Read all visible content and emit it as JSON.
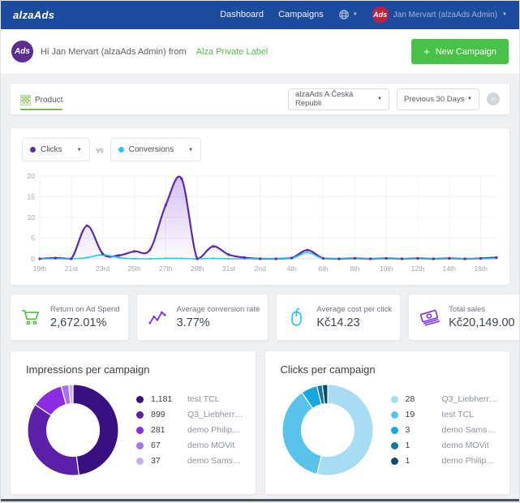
{
  "navbar": {
    "brand": "alzaAds",
    "items": [
      {
        "label": "Dashboard"
      },
      {
        "label": "Campaigns"
      }
    ],
    "user_badge": "Ads",
    "user_badge_color": "#c41f3e",
    "user": "Jan Mervart (alzaAds Admin)"
  },
  "greeting": {
    "badge": "Ads",
    "badge_color": "#5c2d91",
    "text": "Hi Jan Mervart (alzaAds Admin) from",
    "link": "Alza Private Label",
    "plus": "+",
    "new_campaign": "New Campaign",
    "button_color": "#47c147"
  },
  "filterbar": {
    "tab": "Product",
    "account_select": "alzaAds A Česká Republi",
    "range_select": "Previous 30 Days"
  },
  "series_controls": {
    "left_label": "Clicks",
    "left_color": "#5a2da5",
    "vs": "vs",
    "right_label": "Conversions",
    "right_color": "#29c5f6"
  },
  "ui": {
    "caret": "▼",
    "close": "✕"
  },
  "stats": [
    {
      "label": "Return on Ad Spend",
      "value": "2,672.01%",
      "icon": "cart-icon",
      "color": "#4bc142"
    },
    {
      "label": "Average conversion rate",
      "value": "3.77%",
      "icon": "trend-icon",
      "color": "#7b2ff0"
    },
    {
      "label": "Average cost per click",
      "value": "Kč14.23",
      "icon": "mouse-icon",
      "color": "#29c0f2"
    },
    {
      "label": "Total sales",
      "value": "Kč20,149.00",
      "icon": "banknotes-icon",
      "color": "#7b2ff0"
    }
  ],
  "chart_data": [
    {
      "type": "line",
      "title": "Clicks vs Conversions",
      "x": [
        "19th",
        "20th",
        "21st",
        "22nd",
        "23rd",
        "24th",
        "25th",
        "26th",
        "27th",
        "28th",
        "29th",
        "30th",
        "31st",
        "1st",
        "2nd",
        "3rd",
        "4th",
        "5th",
        "6th",
        "7th",
        "8th",
        "9th",
        "10th",
        "11th",
        "12th",
        "13th",
        "14th",
        "15th",
        "16th",
        "17th"
      ],
      "tick_every": 2,
      "ylim": [
        0,
        20
      ],
      "yticks": [
        0,
        5,
        10,
        15,
        20
      ],
      "grid": true,
      "legend_position": "none",
      "series": [
        {
          "name": "Clicks",
          "color": "#5a2da5",
          "values": [
            0,
            0.2,
            0,
            8,
            1.2,
            0.8,
            1.8,
            2.2,
            13,
            19.4,
            0,
            3,
            1,
            0.3,
            0,
            0,
            0.2,
            2.1,
            0.1,
            0,
            0.1,
            0,
            0.1,
            0,
            0.1,
            0,
            0.1,
            0,
            0.1,
            0.3
          ]
        },
        {
          "name": "Conversions",
          "color": "#29c5f6",
          "values": [
            0,
            0,
            0,
            0.3,
            1,
            0.3,
            0,
            0,
            0.1,
            0.1,
            0,
            0.1,
            0,
            0,
            0,
            0,
            0.1,
            1.5,
            0,
            0,
            0,
            0,
            0,
            0,
            0,
            0,
            0,
            0,
            0,
            0.1
          ]
        }
      ]
    },
    {
      "type": "pie",
      "title": "Impressions per campaign",
      "labels": [
        "test TCL",
        "Q3_Liebherr_mrazá…",
        "demo Philips Hue",
        "demo MOVit",
        "demo Samsung"
      ],
      "values": [
        1181,
        899,
        281,
        67,
        37
      ],
      "display_values": [
        "1,181",
        "899",
        "281",
        "67",
        "37"
      ],
      "colors": [
        "#3a1080",
        "#5c1fa8",
        "#8a2ce2",
        "#a873e8",
        "#cab0ef"
      ],
      "legend_position": "right"
    },
    {
      "type": "pie",
      "title": "Clicks per campaign",
      "labels": [
        "Q3_Liebherr_mrazá…",
        "test TCL",
        "demo Samsung",
        "demo MOVit",
        "demo Philips Hue"
      ],
      "values": [
        28,
        19,
        3,
        1,
        1
      ],
      "display_values": [
        "28",
        "19",
        "3",
        "1",
        "1"
      ],
      "colors": [
        "#a7ddf2",
        "#58c4ec",
        "#17a6e0",
        "#17759e",
        "#0b4e66"
      ],
      "legend_position": "right"
    }
  ]
}
